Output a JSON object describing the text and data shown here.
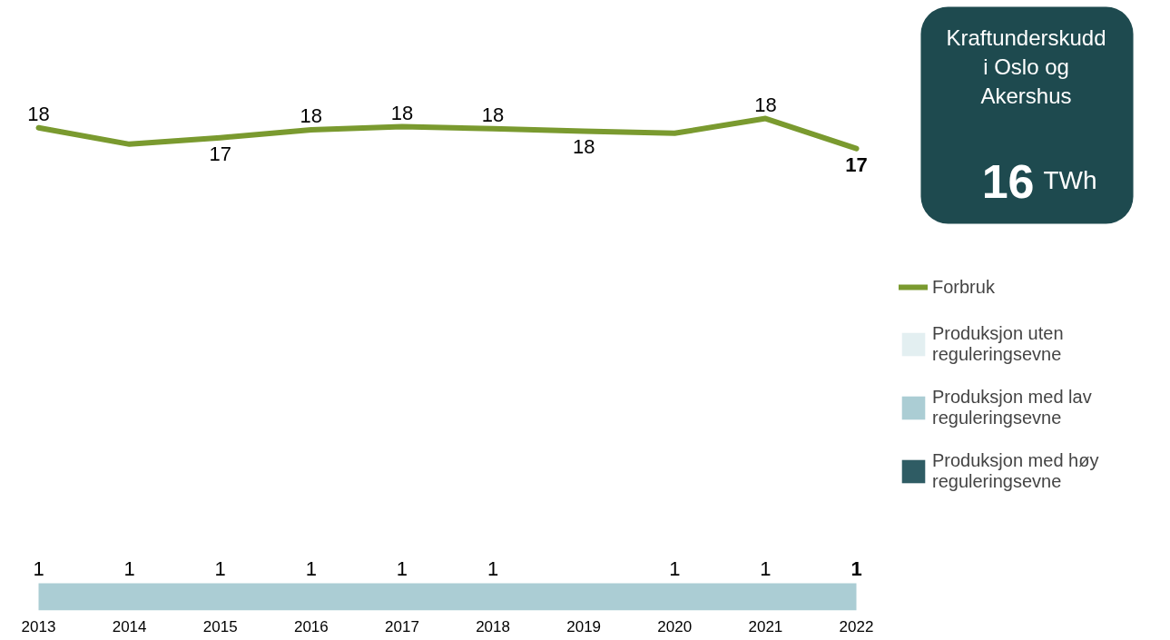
{
  "chart_data": {
    "type": "area",
    "x": [
      2013,
      2014,
      2015,
      2016,
      2017,
      2018,
      2019,
      2020,
      2021,
      2022
    ],
    "xlim": [
      2013,
      2022
    ],
    "xticks": [
      2013,
      2014,
      2015,
      2016,
      2017,
      2018,
      2019,
      2020,
      2021,
      2022
    ],
    "stacked": true,
    "grid": false,
    "tick_labels": "x",
    "legend": "right",
    "series": [
      {
        "name": "Forbruk",
        "type": "line",
        "color": "#7a9a2f",
        "values": [
          17.66,
          17.06,
          17.3,
          17.59,
          17.7,
          17.63,
          17.54,
          17.46,
          18.0,
          16.9
        ],
        "value_labels": [
          "18",
          null,
          "17",
          "18",
          "18",
          "18",
          "18",
          null,
          "18",
          "17"
        ]
      },
      {
        "name": "Produksjon uten\nreguleringsevne",
        "color": "#e3eff1",
        "values": [
          null,
          null,
          null,
          null,
          null,
          null,
          null,
          null,
          null,
          null
        ]
      },
      {
        "name": "Produksjon med lav\nreguleringsevne",
        "color": "#abcdd4",
        "values": [
          1,
          1,
          1,
          1,
          1,
          1,
          1,
          1,
          1,
          1
        ]
      },
      {
        "name": "Produksjon med høy\nreguleringsevne",
        "color": "#2f5c64",
        "values": [
          null,
          null,
          null,
          null,
          null,
          null,
          null,
          null,
          null,
          null
        ]
      }
    ],
    "totals": [
      "1",
      "1",
      "1",
      "1",
      "1",
      "1",
      null,
      "1",
      "1",
      "1"
    ],
    "annotations": [
      "Kraftunderskudd\ni Oslo og\nAkershus",
      "16 TWh"
    ]
  }
}
